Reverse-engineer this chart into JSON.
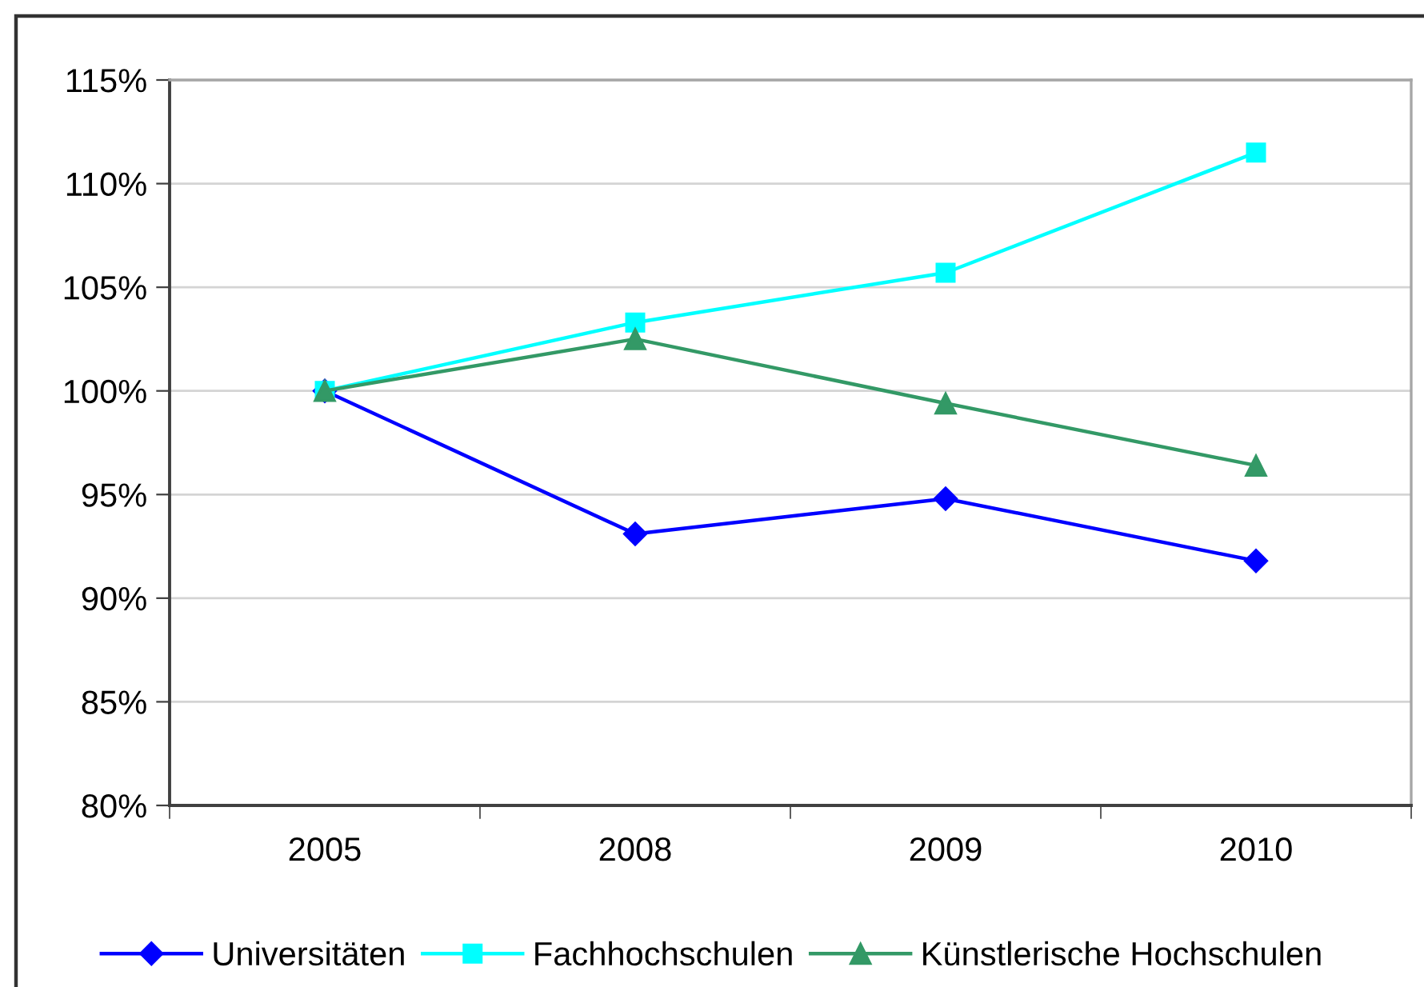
{
  "chart_data": {
    "type": "line",
    "categories": [
      "2005",
      "2008",
      "2009",
      "2010"
    ],
    "series": [
      {
        "name": "Universitäten",
        "color": "#0000ff",
        "marker": "diamond",
        "values": [
          100,
          93.1,
          94.8,
          91.8
        ]
      },
      {
        "name": "Fachhochschulen",
        "color": "#00ffff",
        "marker": "square",
        "values": [
          100,
          103.3,
          105.7,
          111.5
        ]
      },
      {
        "name": "Künstlerische Hochschulen",
        "color": "#339966",
        "marker": "triangle",
        "values": [
          100,
          102.5,
          99.4,
          96.4
        ]
      }
    ],
    "ylim": [
      80,
      115
    ],
    "yticks": [
      {
        "value": 80,
        "label": "80%"
      },
      {
        "value": 85,
        "label": "85%"
      },
      {
        "value": 90,
        "label": "90%"
      },
      {
        "value": 95,
        "label": "95%"
      },
      {
        "value": 100,
        "label": "100%"
      },
      {
        "value": 105,
        "label": "105%"
      },
      {
        "value": 110,
        "label": "110%"
      },
      {
        "value": 115,
        "label": "115%"
      }
    ],
    "grid": "y",
    "legend": "bottom",
    "line_style": "solid"
  }
}
